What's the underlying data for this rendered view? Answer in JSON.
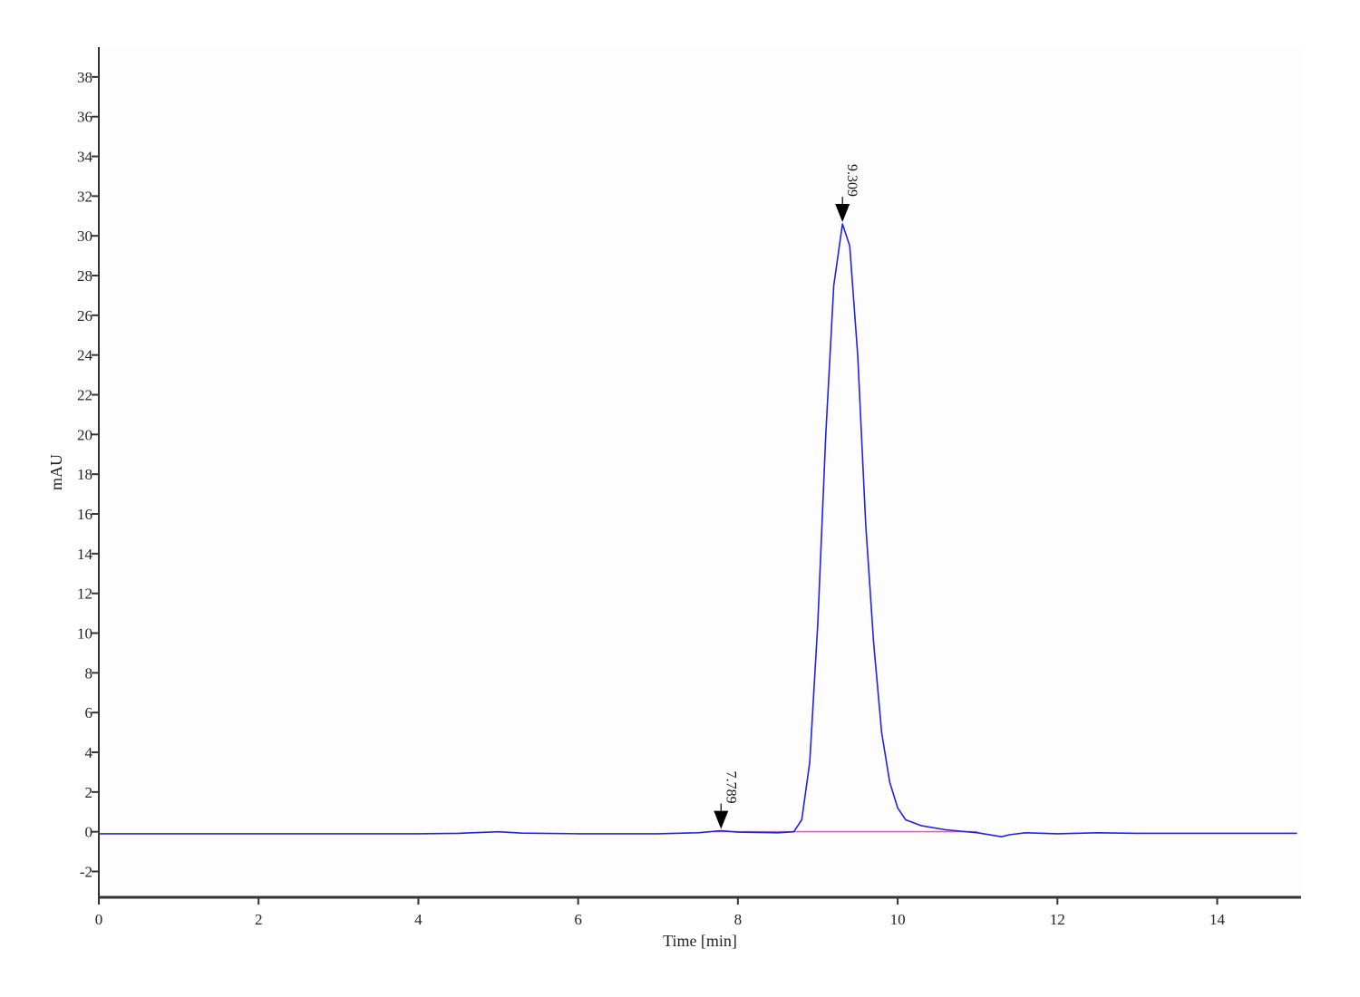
{
  "chart_data": {
    "type": "line",
    "title": "",
    "xlabel": "Time [min]",
    "ylabel": "mAU",
    "xlim": [
      0,
      15.05
    ],
    "ylim": [
      -3.3,
      39.5
    ],
    "xticks": [
      0,
      2,
      4,
      6,
      8,
      10,
      12,
      14
    ],
    "yticks": [
      -2,
      0,
      2,
      4,
      6,
      8,
      10,
      12,
      14,
      16,
      18,
      20,
      22,
      24,
      26,
      28,
      30,
      32,
      34,
      36,
      38
    ],
    "grid": false,
    "colors": {
      "trace": "#2020ee",
      "baseline": "#ee55bb",
      "axis": "#333333",
      "background": "#fdfdfd"
    },
    "series": [
      {
        "x": [
          0,
          1,
          2,
          3,
          4,
          4.5,
          5,
          5.3,
          6,
          7,
          7.5,
          7.789,
          8.0,
          8.5,
          8.7,
          8.8,
          8.9,
          9.0,
          9.1,
          9.2,
          9.309,
          9.4,
          9.5,
          9.6,
          9.7,
          9.8,
          9.9,
          10.0,
          10.1,
          10.3,
          10.6,
          11.0,
          11.3,
          11.4,
          11.6,
          12,
          12.5,
          13,
          14,
          15
        ],
        "y": [
          -0.1,
          -0.1,
          -0.1,
          -0.1,
          -0.1,
          -0.08,
          0.0,
          -0.07,
          -0.1,
          -0.1,
          -0.05,
          0.05,
          -0.02,
          -0.05,
          0.0,
          0.6,
          3.5,
          10.5,
          20.0,
          27.5,
          30.6,
          29.5,
          24.0,
          15.5,
          9.5,
          5.0,
          2.5,
          1.2,
          0.6,
          0.3,
          0.1,
          -0.05,
          -0.25,
          -0.15,
          -0.05,
          -0.1,
          -0.05,
          -0.08,
          -0.08,
          -0.08
        ]
      }
    ],
    "baselines": [
      {
        "x": [
          7.7,
          11.0
        ],
        "y": [
          0.0,
          0.0
        ]
      }
    ],
    "peaks": [
      {
        "label": "7.789",
        "x": 7.789,
        "y": 0.05
      },
      {
        "label": "9.309",
        "x": 9.309,
        "y": 30.6
      }
    ]
  }
}
